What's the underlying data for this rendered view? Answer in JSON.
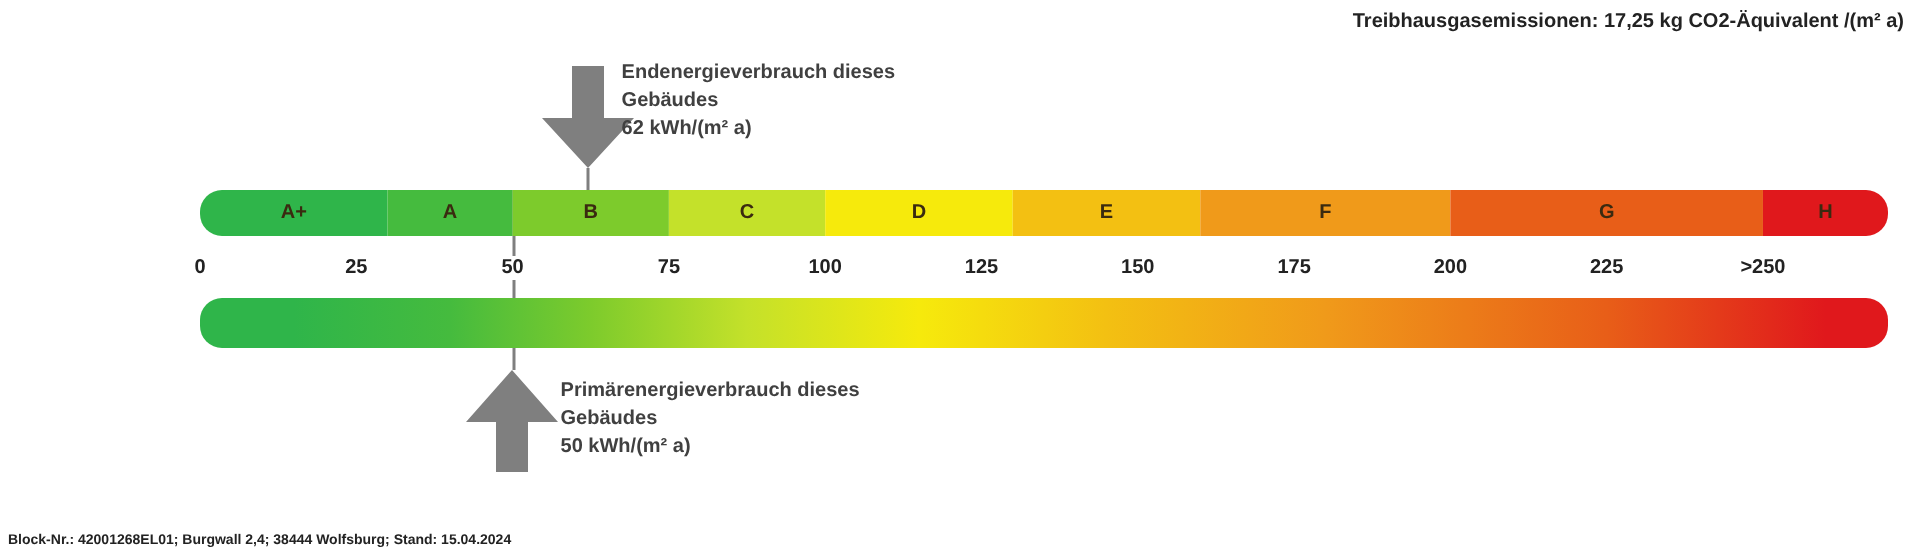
{
  "chart_data": {
    "type": "bar",
    "orientation": "horizontal",
    "stacked": true,
    "tick_labels": "x",
    "legend": false,
    "categories": [
      null
    ],
    "xlim": [
      0,
      270
    ],
    "xticks": [
      0,
      25,
      50,
      75,
      100,
      125,
      150,
      175,
      200,
      225,
      {
        "value": 250,
        "label": ">250"
      }
    ],
    "series": [
      {
        "name": "A+",
        "color": "#2fb54a",
        "values": [
          30
        ]
      },
      {
        "name": "A",
        "color": "#45bb3e",
        "values": [
          20
        ]
      },
      {
        "name": "B",
        "color": "#7dcb2c",
        "values": [
          25
        ]
      },
      {
        "name": "C",
        "color": "#c4e12a",
        "values": [
          25
        ]
      },
      {
        "name": "D",
        "color": "#f6ea0c",
        "values": [
          30
        ]
      },
      {
        "name": "E",
        "color": "#f3c012",
        "values": [
          30
        ]
      },
      {
        "name": "F",
        "color": "#f09a1a",
        "values": [
          40
        ]
      },
      {
        "name": "G",
        "color": "#e85e18",
        "values": [
          50
        ]
      },
      {
        "name": "H",
        "color": "#e0181c",
        "values": [
          20
        ]
      }
    ],
    "ref_lines": [
      {
        "axis": "x",
        "value": 62,
        "label": "Endenergieverbrauch dieses\nGebäudes\n62 kWh/(m² a)",
        "color": "#7f7f7f"
      },
      {
        "axis": "x",
        "value": 50,
        "label": "Primärenergieverbrauch dieses\nGebäudes\n50 kWh/(m² a)",
        "color": "#7f7f7f"
      }
    ],
    "annotations": [
      "Treibhausgasemissionen: 17,25 kg CO2-Äquivalent /(m² a)",
      "Block-Nr.: 42001268EL01; Burgwall 2,4; 38444 Wolfsburg; Stand: 15.04.2024"
    ]
  }
}
